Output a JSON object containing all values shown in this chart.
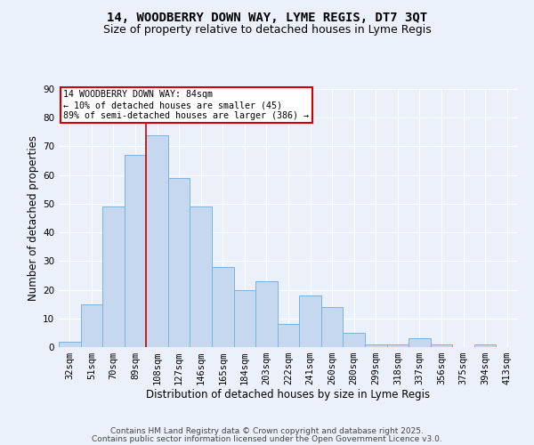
{
  "title": "14, WOODBERRY DOWN WAY, LYME REGIS, DT7 3QT",
  "subtitle": "Size of property relative to detached houses in Lyme Regis",
  "xlabel": "Distribution of detached houses by size in Lyme Regis",
  "ylabel": "Number of detached properties",
  "bin_labels": [
    "32sqm",
    "51sqm",
    "70sqm",
    "89sqm",
    "108sqm",
    "127sqm",
    "146sqm",
    "165sqm",
    "184sqm",
    "203sqm",
    "222sqm",
    "241sqm",
    "260sqm",
    "280sqm",
    "299sqm",
    "318sqm",
    "337sqm",
    "356sqm",
    "375sqm",
    "394sqm",
    "413sqm"
  ],
  "bar_values": [
    2,
    15,
    49,
    67,
    74,
    59,
    49,
    28,
    20,
    23,
    8,
    18,
    14,
    5,
    1,
    1,
    3,
    1,
    0,
    1,
    0
  ],
  "bar_color": "#c5d8f0",
  "bar_edge_color": "#7ab4d8",
  "vline_x": 3.47,
  "vline_color": "#cc0000",
  "annotation_text": "14 WOODBERRY DOWN WAY: 84sqm\n← 10% of detached houses are smaller (45)\n89% of semi-detached houses are larger (386) →",
  "annotation_box_color": "#ffffff",
  "annotation_box_edge": "#cc0000",
  "ylim": [
    0,
    90
  ],
  "yticks": [
    0,
    10,
    20,
    30,
    40,
    50,
    60,
    70,
    80,
    90
  ],
  "footer1": "Contains HM Land Registry data © Crown copyright and database right 2025.",
  "footer2": "Contains public sector information licensed under the Open Government Licence v3.0.",
  "bg_color": "#eaf1fb",
  "plot_bg_color": "#eaf1fb",
  "title_fontsize": 10,
  "subtitle_fontsize": 9,
  "axis_label_fontsize": 8.5,
  "tick_fontsize": 7.5,
  "footer_fontsize": 6.5
}
